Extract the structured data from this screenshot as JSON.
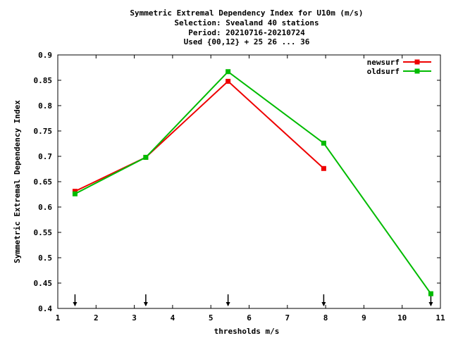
{
  "chart_data": {
    "type": "line",
    "title_lines": [
      "Symmetric Extremal Dependency Index  for U10m (m/s)",
      "Selection: Svealand     40 stations",
      "Period: 20210716-20210724",
      "Used {00,12} + 25 26 ... 36"
    ],
    "xlabel": "thresholds m/s",
    "ylabel": "Symmetric Extremal Dependency Index",
    "xlim": [
      1,
      11
    ],
    "ylim": [
      0.4,
      0.9
    ],
    "xticks": [
      "1",
      "2",
      "3",
      "4",
      "5",
      "6",
      "7",
      "8",
      "9",
      "10",
      "11"
    ],
    "yticks": [
      "0.4",
      "0.45",
      "0.5",
      "0.55",
      "0.6",
      "0.65",
      "0.7",
      "0.75",
      "0.8",
      "0.85",
      "0.9"
    ],
    "grid": false,
    "legend_position": "top-right",
    "threshold_markers": [
      1.45,
      3.3,
      5.45,
      7.95,
      10.75
    ],
    "series": [
      {
        "name": "newsurf",
        "color": "#ee0000",
        "x": [
          1.45,
          3.3,
          5.45,
          7.95
        ],
        "y": [
          0.631,
          0.698,
          0.848,
          0.676
        ]
      },
      {
        "name": "oldsurf",
        "color": "#00bb00",
        "x": [
          1.45,
          3.3,
          5.45,
          7.95,
          10.75
        ],
        "y": [
          0.626,
          0.698,
          0.867,
          0.726,
          0.429
        ]
      }
    ]
  }
}
